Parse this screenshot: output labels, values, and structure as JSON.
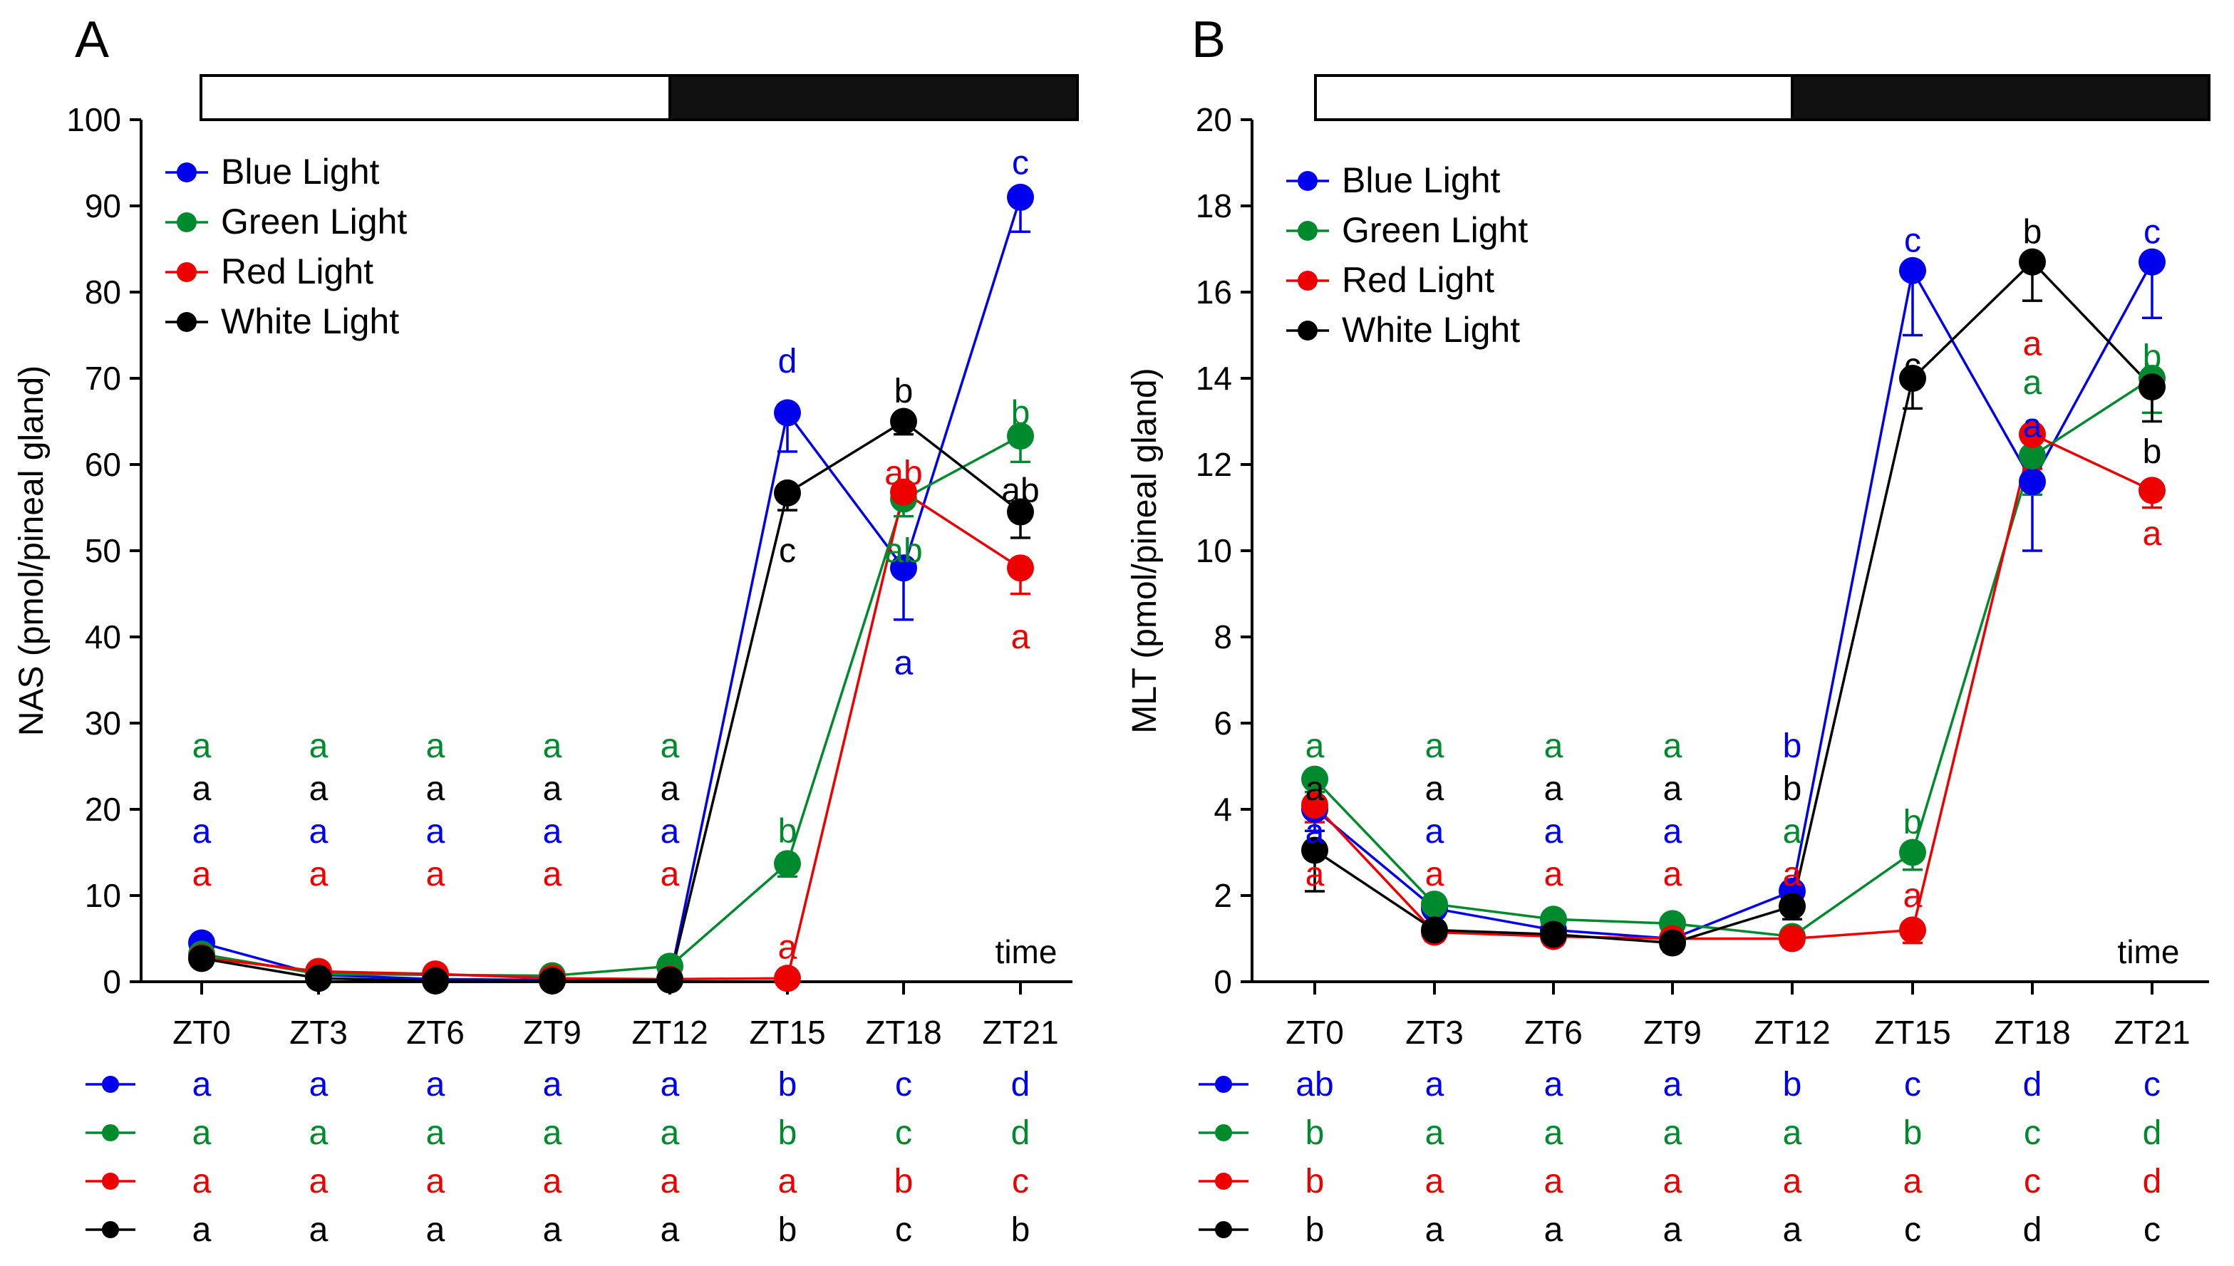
{
  "colors": {
    "blue": "#0000ee",
    "green": "#008a2e",
    "red": "#ee0000",
    "black": "#000000"
  },
  "chart_data": [
    {
      "panel": "A",
      "type": "line",
      "ylabel": "NAS (pmol/pineal gland)",
      "xlabel": "time",
      "ylim": [
        0,
        100
      ],
      "yticks": [
        0,
        10,
        20,
        30,
        40,
        50,
        60,
        70,
        80,
        90,
        100
      ],
      "categories": [
        "ZT0",
        "ZT3",
        "ZT6",
        "ZT9",
        "ZT12",
        "ZT15",
        "ZT18",
        "ZT21"
      ],
      "photoperiod": "light ZT0-ZT12, dark ZT12-ZT24",
      "legend_position": "top-left",
      "series": [
        {
          "name": "Blue Light",
          "color": "blue",
          "values": [
            4.5,
            0.8,
            0.3,
            0.2,
            0.3,
            66,
            48,
            91
          ],
          "errors": [
            0.8,
            0.3,
            0.2,
            0.2,
            0.3,
            4.5,
            6,
            4
          ]
        },
        {
          "name": "Green Light",
          "color": "green",
          "values": [
            3.2,
            0.9,
            0.8,
            0.7,
            1.8,
            13.7,
            56,
            63.3
          ],
          "errors": [
            0.6,
            0.3,
            0.3,
            0.3,
            0.5,
            1.5,
            2,
            3
          ]
        },
        {
          "name": "Red Light",
          "color": "red",
          "values": [
            2.8,
            1.2,
            0.9,
            0.4,
            0.3,
            0.4,
            56.8,
            48
          ],
          "errors": [
            0.5,
            0.3,
            0.3,
            0.2,
            0.2,
            0.2,
            1.5,
            3
          ]
        },
        {
          "name": "White Light",
          "color": "black",
          "values": [
            2.7,
            0.4,
            0.1,
            0.1,
            0.2,
            56.7,
            65,
            54.5
          ],
          "errors": [
            0.5,
            0.2,
            0.1,
            0.1,
            0.2,
            2,
            1.5,
            3
          ]
        }
      ],
      "point_annotations": [
        {
          "x": "ZT0",
          "labels": [
            {
              "text": "a",
              "color": "green"
            },
            {
              "text": "a",
              "color": "black"
            },
            {
              "text": "a",
              "color": "blue"
            },
            {
              "text": "a",
              "color": "red"
            }
          ]
        },
        {
          "x": "ZT3",
          "labels": [
            {
              "text": "a",
              "color": "green"
            },
            {
              "text": "a",
              "color": "black"
            },
            {
              "text": "a",
              "color": "blue"
            },
            {
              "text": "a",
              "color": "red"
            }
          ]
        },
        {
          "x": "ZT6",
          "labels": [
            {
              "text": "a",
              "color": "green"
            },
            {
              "text": "a",
              "color": "black"
            },
            {
              "text": "a",
              "color": "blue"
            },
            {
              "text": "a",
              "color": "red"
            }
          ]
        },
        {
          "x": "ZT9",
          "labels": [
            {
              "text": "a",
              "color": "green"
            },
            {
              "text": "a",
              "color": "black"
            },
            {
              "text": "a",
              "color": "blue"
            },
            {
              "text": "a",
              "color": "red"
            }
          ]
        },
        {
          "x": "ZT12",
          "labels": [
            {
              "text": "a",
              "color": "green"
            },
            {
              "text": "a",
              "color": "black"
            },
            {
              "text": "a",
              "color": "blue"
            },
            {
              "text": "a",
              "color": "red"
            }
          ]
        },
        {
          "x": "ZT15",
          "labels": [
            {
              "text": "d",
              "color": "blue",
              "at": 72
            },
            {
              "text": "c",
              "color": "black",
              "at": 50
            },
            {
              "text": "b",
              "color": "green",
              "at": 17.5
            },
            {
              "text": "a",
              "color": "red",
              "at": 4
            }
          ]
        },
        {
          "x": "ZT18",
          "labels": [
            {
              "text": "b",
              "color": "black",
              "at": 68.5
            },
            {
              "text": "ab",
              "color": "red",
              "at": 59
            },
            {
              "text": "ab",
              "color": "green",
              "at": 50
            },
            {
              "text": "a",
              "color": "blue",
              "at": 37
            }
          ]
        },
        {
          "x": "ZT21",
          "labels": [
            {
              "text": "c",
              "color": "blue",
              "at": 95
            },
            {
              "text": "b",
              "color": "green",
              "at": 66
            },
            {
              "text": "ab",
              "color": "black",
              "at": 57
            },
            {
              "text": "a",
              "color": "red",
              "at": 40
            }
          ]
        }
      ],
      "group_letters": [
        {
          "series": "Blue Light",
          "color": "blue",
          "letters": [
            "a",
            "a",
            "a",
            "a",
            "a",
            "b",
            "c",
            "d"
          ]
        },
        {
          "series": "Green Light",
          "color": "green",
          "letters": [
            "a",
            "a",
            "a",
            "a",
            "a",
            "b",
            "c",
            "d"
          ]
        },
        {
          "series": "Red Light",
          "color": "red",
          "letters": [
            "a",
            "a",
            "a",
            "a",
            "a",
            "a",
            "b",
            "c"
          ]
        },
        {
          "series": "White Light",
          "color": "black",
          "letters": [
            "a",
            "a",
            "a",
            "a",
            "a",
            "b",
            "c",
            "b"
          ]
        }
      ]
    },
    {
      "panel": "B",
      "type": "line",
      "ylabel": "MLT (pmol/pineal gland)",
      "xlabel": "time",
      "ylim": [
        0,
        20
      ],
      "yticks": [
        0,
        2,
        4,
        6,
        8,
        10,
        12,
        14,
        16,
        18,
        20
      ],
      "categories": [
        "ZT0",
        "ZT3",
        "ZT6",
        "ZT9",
        "ZT12",
        "ZT15",
        "ZT18",
        "ZT21"
      ],
      "photoperiod": "light ZT0-ZT12, dark ZT12-ZT24",
      "legend_position": "top-left",
      "series": [
        {
          "name": "Blue Light",
          "color": "blue",
          "values": [
            4.0,
            1.7,
            1.2,
            1.0,
            2.1,
            16.5,
            11.6,
            16.7
          ],
          "errors": [
            0.5,
            0.2,
            0.2,
            0.2,
            0.3,
            1.5,
            1.6,
            1.3
          ]
        },
        {
          "name": "Green Light",
          "color": "green",
          "values": [
            4.7,
            1.8,
            1.45,
            1.35,
            1.05,
            3.0,
            12.2,
            14.0
          ],
          "errors": [
            0.3,
            0.2,
            0.2,
            0.2,
            0.2,
            0.4,
            0.9,
            0.8
          ]
        },
        {
          "name": "Red Light",
          "color": "red",
          "values": [
            4.1,
            1.15,
            1.05,
            1.0,
            1.0,
            1.2,
            12.7,
            11.4
          ],
          "errors": [
            0.4,
            0.2,
            0.2,
            0.2,
            0.2,
            0.3,
            0.8,
            0.4
          ]
        },
        {
          "name": "White Light",
          "color": "black",
          "values": [
            3.05,
            1.2,
            1.1,
            0.9,
            1.75,
            14.0,
            16.7,
            13.8
          ],
          "errors": [
            0.95,
            0.2,
            0.2,
            0.2,
            0.3,
            0.7,
            0.9,
            0.8
          ]
        }
      ],
      "point_annotations": [
        {
          "x": "ZT0",
          "labels": [
            {
              "text": "a",
              "color": "green"
            },
            {
              "text": "a",
              "color": "black"
            },
            {
              "text": "a",
              "color": "blue"
            },
            {
              "text": "a",
              "color": "red"
            }
          ]
        },
        {
          "x": "ZT3",
          "labels": [
            {
              "text": "a",
              "color": "green"
            },
            {
              "text": "a",
              "color": "black"
            },
            {
              "text": "a",
              "color": "blue"
            },
            {
              "text": "a",
              "color": "red"
            }
          ]
        },
        {
          "x": "ZT6",
          "labels": [
            {
              "text": "a",
              "color": "green"
            },
            {
              "text": "a",
              "color": "black"
            },
            {
              "text": "a",
              "color": "blue"
            },
            {
              "text": "a",
              "color": "red"
            }
          ]
        },
        {
          "x": "ZT9",
          "labels": [
            {
              "text": "a",
              "color": "green"
            },
            {
              "text": "a",
              "color": "black"
            },
            {
              "text": "a",
              "color": "blue"
            },
            {
              "text": "a",
              "color": "red"
            }
          ]
        },
        {
          "x": "ZT12",
          "labels": [
            {
              "text": "b",
              "color": "blue"
            },
            {
              "text": "b",
              "color": "black"
            },
            {
              "text": "a",
              "color": "green"
            },
            {
              "text": "a",
              "color": "red"
            }
          ]
        },
        {
          "x": "ZT15",
          "labels": [
            {
              "text": "c",
              "color": "blue",
              "at": 17.2
            },
            {
              "text": "c",
              "color": "black",
              "at": 14.3
            },
            {
              "text": "b",
              "color": "green",
              "at": 3.7
            },
            {
              "text": "a",
              "color": "red",
              "at": 2.0
            }
          ]
        },
        {
          "x": "ZT18",
          "labels": [
            {
              "text": "b",
              "color": "black",
              "at": 17.4
            },
            {
              "text": "a",
              "color": "red",
              "at": 14.8
            },
            {
              "text": "a",
              "color": "green",
              "at": 13.9
            },
            {
              "text": "a",
              "color": "blue",
              "at": 12.9
            }
          ]
        },
        {
          "x": "ZT21",
          "labels": [
            {
              "text": "c",
              "color": "blue",
              "at": 17.4
            },
            {
              "text": "b",
              "color": "green",
              "at": 14.5
            },
            {
              "text": "b",
              "color": "black",
              "at": 12.3
            },
            {
              "text": "a",
              "color": "red",
              "at": 10.4
            }
          ]
        }
      ],
      "group_letters": [
        {
          "series": "Blue Light",
          "color": "blue",
          "letters": [
            "ab",
            "a",
            "a",
            "a",
            "b",
            "c",
            "d",
            "c"
          ]
        },
        {
          "series": "Green Light",
          "color": "green",
          "letters": [
            "b",
            "a",
            "a",
            "a",
            "a",
            "b",
            "c",
            "d"
          ]
        },
        {
          "series": "Red Light",
          "color": "red",
          "letters": [
            "b",
            "a",
            "a",
            "a",
            "a",
            "a",
            "c",
            "d"
          ]
        },
        {
          "series": "White Light",
          "color": "black",
          "letters": [
            "b",
            "a",
            "a",
            "a",
            "a",
            "c",
            "d",
            "c"
          ]
        }
      ]
    }
  ]
}
